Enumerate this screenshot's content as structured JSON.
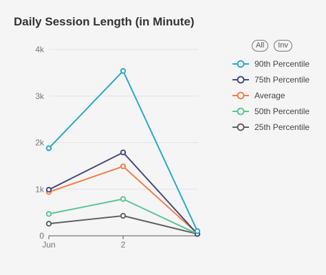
{
  "chart_data": {
    "type": "line",
    "title": "Daily Session Length (in Minute)",
    "xlabel": "",
    "ylabel": "",
    "categories": [
      "Jun",
      "2",
      ""
    ],
    "x_tick_labels": [
      "Jun",
      "2"
    ],
    "y_ticks": [
      0,
      1000,
      2000,
      3000,
      4000
    ],
    "y_tick_labels": [
      "0",
      "1k",
      "2k",
      "3k",
      "4k"
    ],
    "ylim": [
      0,
      4000
    ],
    "grid": true,
    "legend_position": "right",
    "series": [
      {
        "name": "90th Percentile",
        "color": "#27a9c9",
        "values": [
          1880,
          3540,
          100
        ]
      },
      {
        "name": "75th Percentile",
        "color": "#464a80",
        "values": [
          990,
          1790,
          40
        ]
      },
      {
        "name": "Average",
        "color": "#f47c47",
        "values": [
          940,
          1490,
          50
        ]
      },
      {
        "name": "50th Percentile",
        "color": "#5cc592",
        "values": [
          470,
          790,
          40
        ]
      },
      {
        "name": "25th Percentile",
        "color": "#606060",
        "values": [
          260,
          430,
          40
        ]
      }
    ]
  },
  "legend": {
    "all_label": "All",
    "inv_label": "Inv"
  }
}
